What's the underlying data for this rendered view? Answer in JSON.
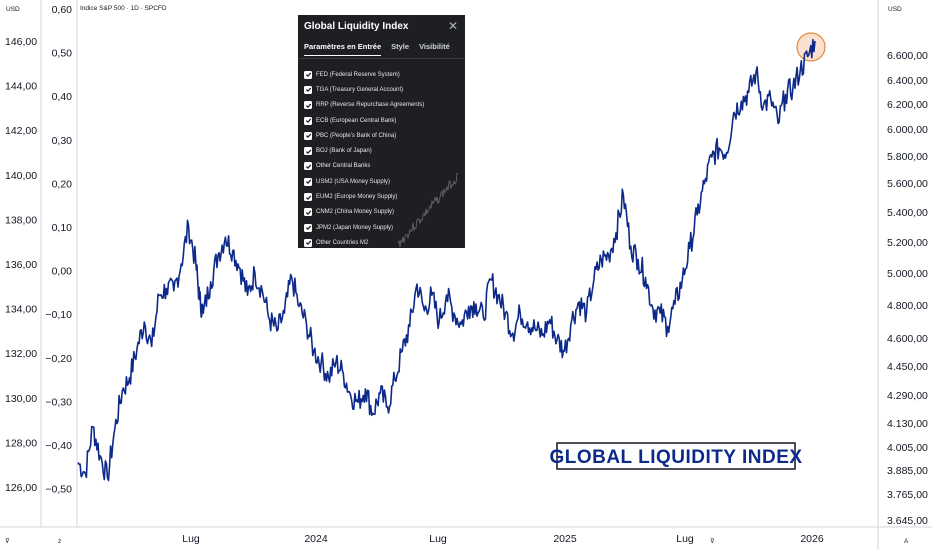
{
  "header": {
    "left_currency": "USD",
    "right_currency": "USD",
    "symbol": "Indice S&P 500 · 1D · SPCFD"
  },
  "chart_data": {
    "type": "line",
    "title": "GLOBAL LIQUIDITY INDEX",
    "series": [
      {
        "color": "#0d2a8a",
        "values": [
          [
            0.0,
            127.1
          ],
          [
            0.01,
            126.6
          ],
          [
            0.02,
            128.7
          ],
          [
            0.03,
            127.4
          ],
          [
            0.04,
            126.4
          ],
          [
            0.05,
            128.6
          ],
          [
            0.06,
            130.3
          ],
          [
            0.07,
            130.9
          ],
          [
            0.08,
            132.2
          ],
          [
            0.09,
            133.4
          ],
          [
            0.1,
            132.3
          ],
          [
            0.11,
            134.6
          ],
          [
            0.12,
            134.9
          ],
          [
            0.13,
            134.8
          ],
          [
            0.14,
            136.0
          ],
          [
            0.15,
            137.7
          ],
          [
            0.16,
            136.0
          ],
          [
            0.165,
            134.4
          ],
          [
            0.17,
            133.8
          ],
          [
            0.18,
            135.2
          ],
          [
            0.19,
            136.4
          ],
          [
            0.2,
            137.2
          ],
          [
            0.21,
            136.6
          ],
          [
            0.22,
            135.8
          ],
          [
            0.23,
            134.6
          ],
          [
            0.24,
            135.6
          ],
          [
            0.25,
            134.8
          ],
          [
            0.26,
            133.5
          ],
          [
            0.27,
            133.0
          ],
          [
            0.28,
            133.8
          ],
          [
            0.29,
            135.4
          ],
          [
            0.3,
            134.1
          ],
          [
            0.31,
            133.3
          ],
          [
            0.32,
            132.1
          ],
          [
            0.33,
            131.6
          ],
          [
            0.34,
            130.9
          ],
          [
            0.35,
            131.6
          ],
          [
            0.36,
            131.1
          ],
          [
            0.37,
            130.1
          ],
          [
            0.38,
            129.8
          ],
          [
            0.39,
            130.4
          ],
          [
            0.4,
            129.3
          ],
          [
            0.41,
            130.2
          ],
          [
            0.42,
            129.6
          ],
          [
            0.43,
            130.8
          ],
          [
            0.44,
            132.1
          ],
          [
            0.45,
            133.2
          ],
          [
            0.46,
            135.1
          ],
          [
            0.47,
            133.9
          ],
          [
            0.48,
            134.6
          ],
          [
            0.49,
            133.4
          ],
          [
            0.5,
            134.6
          ],
          [
            0.51,
            133.8
          ],
          [
            0.52,
            133.3
          ],
          [
            0.53,
            134.1
          ],
          [
            0.54,
            134.2
          ],
          [
            0.55,
            133.6
          ],
          [
            0.56,
            135.3
          ],
          [
            0.57,
            134.6
          ],
          [
            0.58,
            133.8
          ],
          [
            0.59,
            132.9
          ],
          [
            0.6,
            133.8
          ],
          [
            0.61,
            133.4
          ],
          [
            0.62,
            133.1
          ],
          [
            0.63,
            132.8
          ],
          [
            0.64,
            133.5
          ],
          [
            0.65,
            132.6
          ],
          [
            0.66,
            132.1
          ],
          [
            0.67,
            133.5
          ],
          [
            0.68,
            134.3
          ],
          [
            0.69,
            133.8
          ],
          [
            0.7,
            135.3
          ],
          [
            0.71,
            136.2
          ],
          [
            0.72,
            136.4
          ],
          [
            0.73,
            137.4
          ],
          [
            0.74,
            139.1
          ],
          [
            0.75,
            136.8
          ],
          [
            0.76,
            136.2
          ],
          [
            0.77,
            135.4
          ],
          [
            0.78,
            134.0
          ],
          [
            0.79,
            133.8
          ],
          [
            0.8,
            133.2
          ],
          [
            0.81,
            134.2
          ],
          [
            0.82,
            135.3
          ],
          [
            0.83,
            136.7
          ],
          [
            0.84,
            138.2
          ],
          [
            0.85,
            139.6
          ],
          [
            0.86,
            140.8
          ],
          [
            0.87,
            141.2
          ],
          [
            0.88,
            141.0
          ],
          [
            0.89,
            142.8
          ],
          [
            0.9,
            143.3
          ],
          [
            0.91,
            143.7
          ],
          [
            0.92,
            144.6
          ],
          [
            0.93,
            143.1
          ],
          [
            0.94,
            143.4
          ],
          [
            0.95,
            142.3
          ],
          [
            0.96,
            143.6
          ],
          [
            0.97,
            143.9
          ],
          [
            0.98,
            144.7
          ],
          [
            0.99,
            145.3
          ],
          [
            1.0,
            146.0
          ]
        ]
      }
    ],
    "left_axis": {
      "ticks": [
        "146,00",
        "144,00",
        "142,00",
        "140,00",
        "138,00",
        "136,00",
        "134,00",
        "132,00",
        "130,00",
        "128,00",
        "126,00"
      ],
      "range": [
        125.0,
        147.3
      ]
    },
    "middle_axis": {
      "ticks": [
        "0,60",
        "0,50",
        "0,40",
        "0,30",
        "0,20",
        "0,10",
        "0,00",
        "−0,10",
        "−0,20",
        "−0,30",
        "−0,40",
        "−0,50"
      ],
      "range": [
        -0.56,
        0.62
      ]
    },
    "right_axis": {
      "ticks": [
        "6.600,00",
        "6.400,00",
        "6.200,00",
        "6.000,00",
        "5.800,00",
        "5.600,00",
        "5.400,00",
        "5.200,00",
        "5.000,00",
        "4.800,00",
        "4.600,00",
        "4.450,00",
        "4.290,00",
        "4.130,00",
        "4.005,00",
        "3.885,00",
        "3.765,00",
        "3.645,00"
      ],
      "scale": "log"
    },
    "x_axis": {
      "ticks": [
        "Lug",
        "2024",
        "Lug",
        "2025",
        "Lug",
        "2026"
      ]
    },
    "grid": false,
    "highlight": "last point circled in orange",
    "annotation": "GLOBAL LIQUIDITY INDEX"
  },
  "dialog": {
    "title": "Global Liquidity Index",
    "tabs": [
      "Paramètres en Entrée",
      "Style",
      "Visibilité"
    ],
    "items": [
      "FED (Federal Reserve System)",
      "TGA (Treasury General Account)",
      "RRP (Reverse Repurchase Agreements)",
      "ECB (European Central Bank)",
      "PBC (People's Bank of China)",
      "BOJ (Bank of Japan)",
      "Other Central Banks",
      "USM2 (USA Money Supply)",
      "EUM2 (Europe Money Supply)",
      "CNM2 (China Money Supply)",
      "JPM2 (Japan Money Supply)",
      "Other Countries M2"
    ]
  },
  "footer": {
    "left_icon": "filter-icon",
    "mid_icon": "z-icon",
    "right_icon_1": "filter-icon",
    "right_icon_2": "a-icon"
  }
}
